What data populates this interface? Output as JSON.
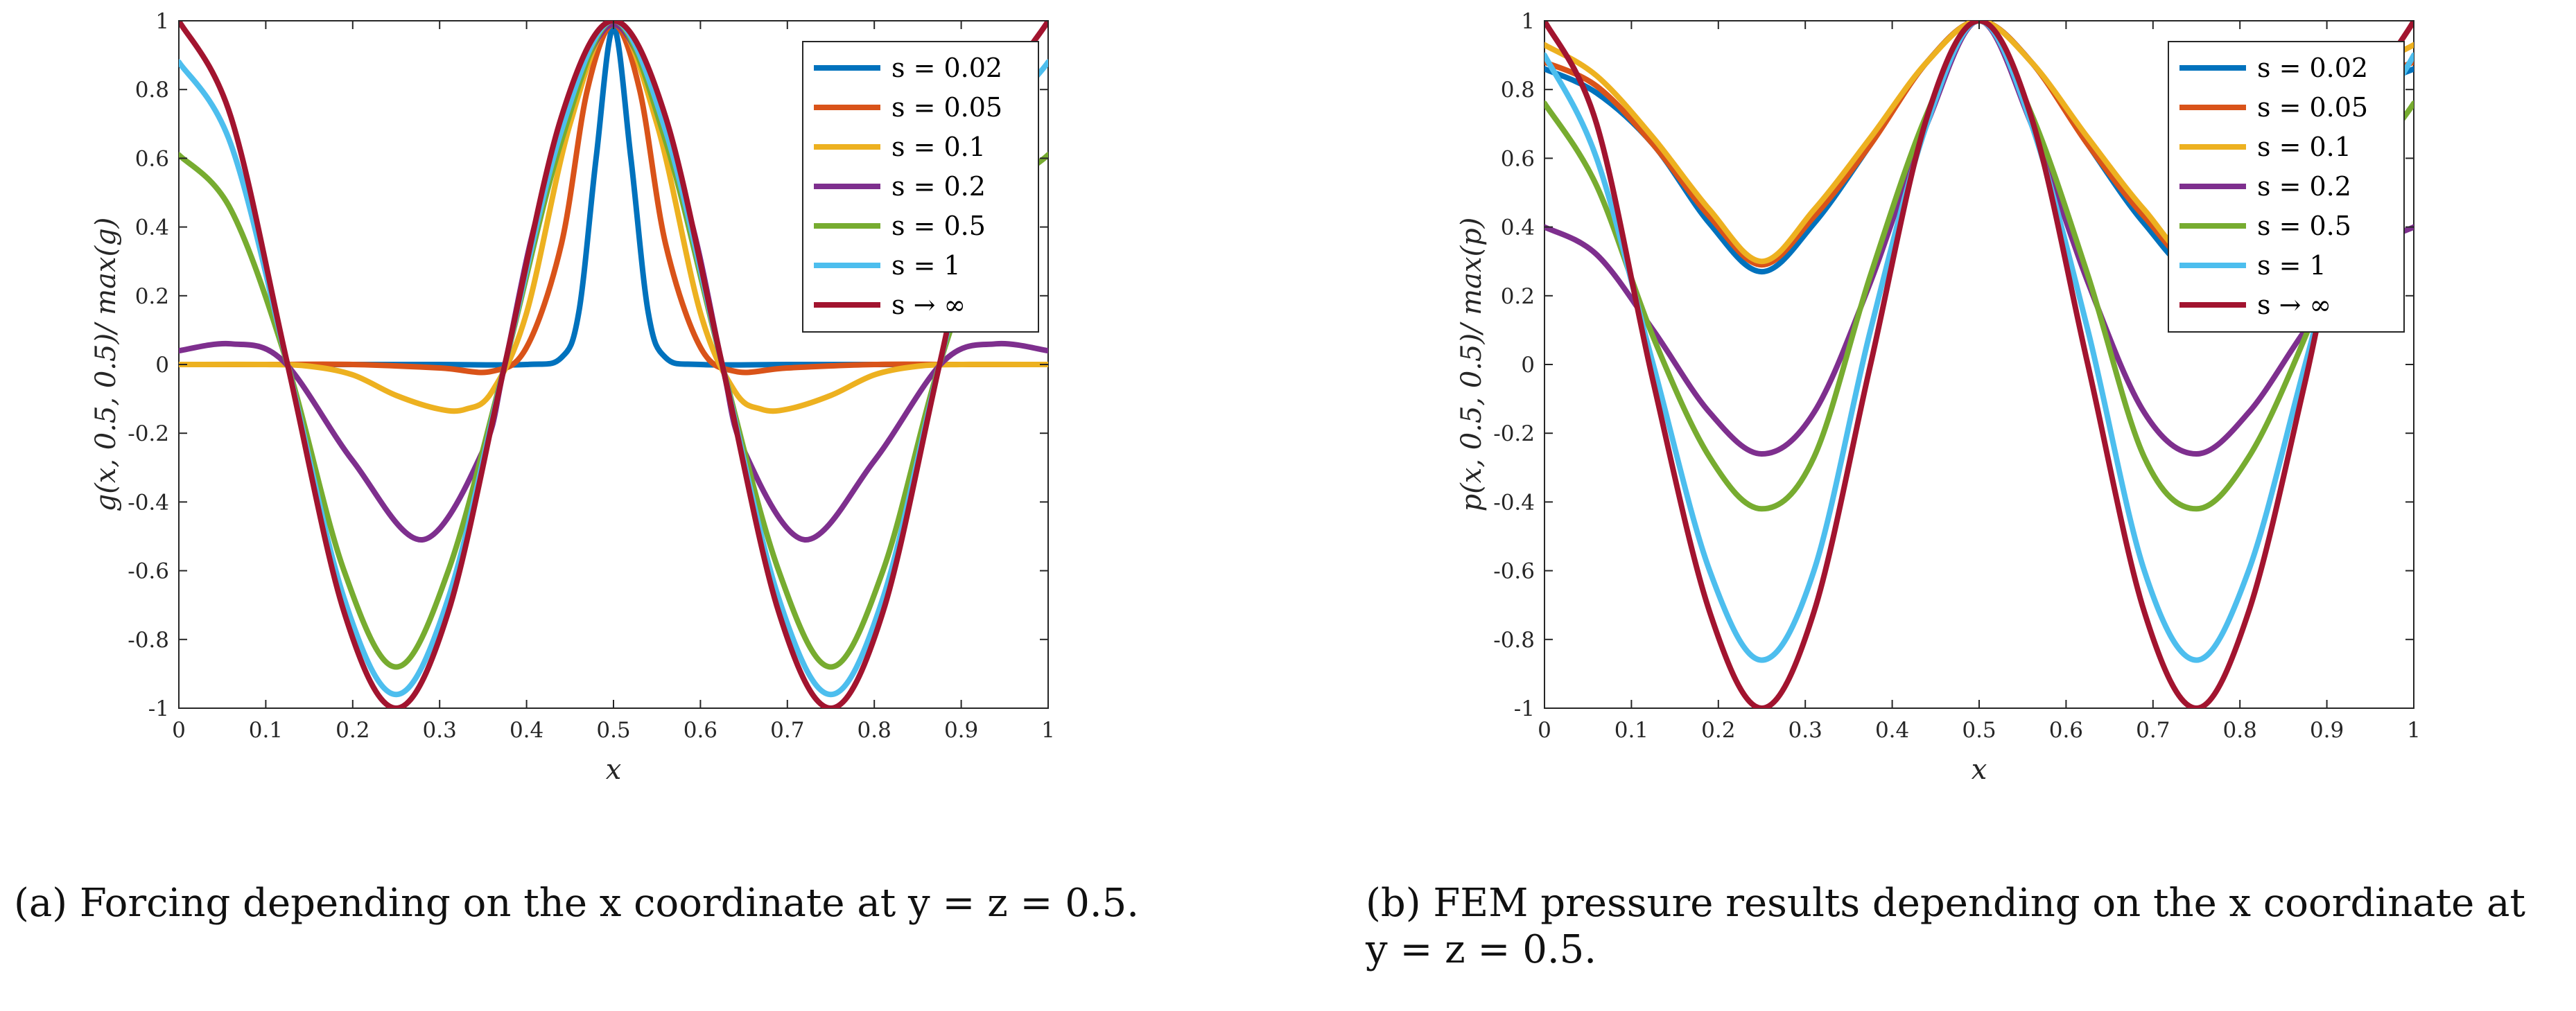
{
  "captions": {
    "left": "(a) Forcing depending on the x coordinate at y = z = 0.5.",
    "right": "(b) FEM pressure results depending on the x coordinate at y = z = 0.5."
  },
  "colors": {
    "s=0.02": "#0072BD",
    "s=0.05": "#D95319",
    "s=0.1": "#EDB120",
    "s=0.2": "#7E2F8E",
    "s=0.5": "#77AC30",
    "s=1": "#4DBEEE",
    "s->inf": "#A2142F"
  },
  "chart_data": [
    {
      "type": "line",
      "xlabel": "x",
      "ylabel": "g(x, 0.5, 0.5)/ max(g)",
      "xlim": [
        0,
        1
      ],
      "ylim": [
        -1,
        1
      ],
      "xticks": [
        "0",
        "0.1",
        "0.2",
        "0.3",
        "0.4",
        "0.5",
        "0.6",
        "0.7",
        "0.8",
        "0.9",
        "1"
      ],
      "yticks": [
        "-1",
        "-0.8",
        "-0.6",
        "-0.4",
        "-0.2",
        "0",
        "0.2",
        "0.4",
        "0.6",
        "0.8",
        "1"
      ],
      "legend_position": "top-right",
      "series": [
        {
          "name": "s = 0.02",
          "x": [
            0,
            0.1,
            0.2,
            0.3,
            0.4,
            0.44,
            0.46,
            0.48,
            0.5,
            0.52,
            0.54,
            0.56,
            0.6,
            0.7,
            0.8,
            0.9,
            1
          ],
          "y": [
            0,
            0,
            0,
            0,
            0,
            0.02,
            0.15,
            0.6,
            0.98,
            0.6,
            0.15,
            0.02,
            0,
            0,
            0,
            0,
            0
          ]
        },
        {
          "name": "s = 0.05",
          "x": [
            0,
            0.1,
            0.2,
            0.3,
            0.36,
            0.4,
            0.44,
            0.47,
            0.5,
            0.53,
            0.56,
            0.6,
            0.64,
            0.7,
            0.8,
            0.9,
            1
          ],
          "y": [
            0,
            0,
            0,
            -0.01,
            -0.02,
            0.05,
            0.35,
            0.8,
            0.99,
            0.8,
            0.35,
            0.05,
            -0.02,
            -0.01,
            0,
            0,
            0
          ]
        },
        {
          "name": "s = 0.1",
          "x": [
            0,
            0.1,
            0.15,
            0.2,
            0.25,
            0.3,
            0.33,
            0.36,
            0.4,
            0.45,
            0.5,
            0.55,
            0.6,
            0.64,
            0.67,
            0.7,
            0.75,
            0.8,
            0.85,
            0.9,
            1
          ],
          "y": [
            0,
            0,
            -0.005,
            -0.03,
            -0.09,
            -0.13,
            -0.13,
            -0.08,
            0.15,
            0.7,
            1,
            0.7,
            0.15,
            -0.08,
            -0.13,
            -0.13,
            -0.09,
            -0.03,
            -0.005,
            0,
            0
          ]
        },
        {
          "name": "s = 0.2",
          "x": [
            0,
            0.06,
            0.12,
            0.2,
            0.28,
            0.35,
            0.375,
            0.42,
            0.5,
            0.58,
            0.625,
            0.65,
            0.72,
            0.8,
            0.88,
            0.94,
            1
          ],
          "y": [
            0.04,
            0.06,
            0.01,
            -0.28,
            -0.51,
            -0.25,
            0,
            0.5,
            0.99,
            0.5,
            0,
            -0.25,
            -0.51,
            -0.28,
            0.01,
            0.06,
            0.04
          ]
        },
        {
          "name": "s = 0.5",
          "x": [
            0,
            0.06,
            0.125,
            0.19,
            0.25,
            0.31,
            0.375,
            0.44,
            0.5,
            0.56,
            0.625,
            0.69,
            0.75,
            0.81,
            0.875,
            0.94,
            1
          ],
          "y": [
            0.61,
            0.45,
            0,
            -0.6,
            -0.88,
            -0.6,
            0,
            0.65,
            1,
            0.65,
            0,
            -0.6,
            -0.88,
            -0.6,
            0,
            0.45,
            0.61
          ]
        },
        {
          "name": "s = 1",
          "x": [
            0,
            0.06,
            0.125,
            0.19,
            0.25,
            0.31,
            0.375,
            0.44,
            0.5,
            0.56,
            0.625,
            0.69,
            0.75,
            0.81,
            0.875,
            0.94,
            1
          ],
          "y": [
            0.88,
            0.64,
            0,
            -0.68,
            -0.96,
            -0.68,
            0,
            0.68,
            1,
            0.68,
            0,
            -0.68,
            -0.96,
            -0.68,
            0,
            0.64,
            0.88
          ]
        },
        {
          "name": "s → ∞",
          "x": [
            0,
            0.06,
            0.125,
            0.19,
            0.25,
            0.31,
            0.375,
            0.44,
            0.5,
            0.56,
            0.625,
            0.69,
            0.75,
            0.81,
            0.875,
            0.94,
            1
          ],
          "y": [
            1,
            0.72,
            0,
            -0.72,
            -1,
            -0.72,
            0,
            0.72,
            1,
            0.72,
            0,
            -0.72,
            -1,
            -0.72,
            0,
            0.72,
            1
          ]
        }
      ]
    },
    {
      "type": "line",
      "xlabel": "x",
      "ylabel": "p(x, 0.5, 0.5)/ max(p)",
      "xlim": [
        0,
        1
      ],
      "ylim": [
        -1,
        1
      ],
      "xticks": [
        "0",
        "0.1",
        "0.2",
        "0.3",
        "0.4",
        "0.5",
        "0.6",
        "0.7",
        "0.8",
        "0.9",
        "1"
      ],
      "yticks": [
        "-1",
        "-0.8",
        "-0.6",
        "-0.4",
        "-0.2",
        "0",
        "0.2",
        "0.4",
        "0.6",
        "0.8",
        "1"
      ],
      "legend_position": "top-right",
      "series": [
        {
          "name": "s = 0.02",
          "x": [
            0,
            0.06,
            0.125,
            0.19,
            0.25,
            0.31,
            0.375,
            0.44,
            0.5,
            0.56,
            0.625,
            0.69,
            0.75,
            0.81,
            0.875,
            0.94,
            1
          ],
          "y": [
            0.86,
            0.79,
            0.64,
            0.41,
            0.27,
            0.41,
            0.64,
            0.88,
            1,
            0.88,
            0.64,
            0.41,
            0.27,
            0.41,
            0.64,
            0.79,
            0.86
          ]
        },
        {
          "name": "s = 0.05",
          "x": [
            0,
            0.06,
            0.125,
            0.19,
            0.25,
            0.31,
            0.375,
            0.44,
            0.5,
            0.56,
            0.625,
            0.69,
            0.75,
            0.81,
            0.875,
            0.94,
            1
          ],
          "y": [
            0.88,
            0.81,
            0.64,
            0.43,
            0.29,
            0.43,
            0.64,
            0.88,
            1,
            0.88,
            0.64,
            0.43,
            0.29,
            0.43,
            0.64,
            0.81,
            0.88
          ]
        },
        {
          "name": "s = 0.1",
          "x": [
            0,
            0.06,
            0.125,
            0.19,
            0.25,
            0.31,
            0.375,
            0.44,
            0.5,
            0.56,
            0.625,
            0.69,
            0.75,
            0.81,
            0.875,
            0.94,
            1
          ],
          "y": [
            0.93,
            0.84,
            0.66,
            0.45,
            0.3,
            0.45,
            0.66,
            0.88,
            1,
            0.88,
            0.66,
            0.45,
            0.3,
            0.45,
            0.66,
            0.84,
            0.93
          ]
        },
        {
          "name": "s = 0.2",
          "x": [
            0,
            0.06,
            0.125,
            0.19,
            0.25,
            0.31,
            0.375,
            0.44,
            0.5,
            0.56,
            0.625,
            0.69,
            0.75,
            0.81,
            0.875,
            0.94,
            1
          ],
          "y": [
            0.4,
            0.32,
            0.1,
            -0.14,
            -0.26,
            -0.14,
            0.24,
            0.7,
            1,
            0.7,
            0.24,
            -0.14,
            -0.26,
            -0.14,
            0.1,
            0.32,
            0.4
          ]
        },
        {
          "name": "s = 0.5",
          "x": [
            0,
            0.06,
            0.125,
            0.19,
            0.25,
            0.31,
            0.375,
            0.44,
            0.5,
            0.56,
            0.625,
            0.69,
            0.75,
            0.81,
            0.875,
            0.94,
            1
          ],
          "y": [
            0.76,
            0.52,
            0.08,
            -0.27,
            -0.42,
            -0.27,
            0.26,
            0.73,
            1,
            0.73,
            0.26,
            -0.27,
            -0.42,
            -0.27,
            0.08,
            0.52,
            0.76
          ]
        },
        {
          "name": "s = 1",
          "x": [
            0,
            0.06,
            0.125,
            0.19,
            0.25,
            0.31,
            0.375,
            0.44,
            0.5,
            0.56,
            0.625,
            0.69,
            0.75,
            0.81,
            0.875,
            0.94,
            1
          ],
          "y": [
            0.9,
            0.6,
            0.0,
            -0.6,
            -0.86,
            -0.6,
            0.1,
            0.7,
            1,
            0.7,
            0.1,
            -0.6,
            -0.86,
            -0.6,
            0.0,
            0.6,
            0.9
          ]
        },
        {
          "name": "s → ∞",
          "x": [
            0,
            0.06,
            0.125,
            0.19,
            0.25,
            0.31,
            0.375,
            0.44,
            0.5,
            0.56,
            0.625,
            0.69,
            0.75,
            0.81,
            0.875,
            0.94,
            1
          ],
          "y": [
            1,
            0.7,
            -0.05,
            -0.72,
            -1,
            -0.72,
            0,
            0.72,
            1,
            0.72,
            0,
            -0.72,
            -1,
            -0.72,
            -0.05,
            0.7,
            1
          ]
        }
      ]
    }
  ]
}
